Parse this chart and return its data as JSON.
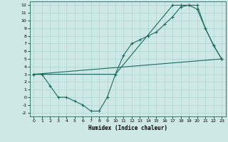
{
  "xlabel": "Humidex (Indice chaleur)",
  "bg_color": "#cde8e5",
  "grid_color": "#a8d4d0",
  "line_color": "#1a6b5e",
  "xlim": [
    -0.5,
    23.5
  ],
  "ylim": [
    -2.5,
    12.5
  ],
  "xticks": [
    0,
    1,
    2,
    3,
    4,
    5,
    6,
    7,
    8,
    9,
    10,
    11,
    12,
    13,
    14,
    15,
    16,
    17,
    18,
    19,
    20,
    21,
    22,
    23
  ],
  "yticks": [
    -2,
    -1,
    0,
    1,
    2,
    3,
    4,
    5,
    6,
    7,
    8,
    9,
    10,
    11,
    12
  ],
  "line1_x": [
    0,
    1,
    2,
    3,
    4,
    5,
    6,
    7,
    8,
    9,
    10,
    11,
    12,
    13,
    14,
    15,
    16,
    17,
    18,
    19,
    20,
    21,
    22,
    23
  ],
  "line1_y": [
    3,
    3,
    1.5,
    0,
    0,
    -0.5,
    -1.0,
    -1.8,
    -1.8,
    0,
    3,
    5.5,
    7.0,
    7.5,
    8.0,
    8.5,
    9.5,
    10.5,
    11.8,
    12.0,
    12.0,
    9.0,
    6.8,
    5.0
  ],
  "line2_x": [
    0,
    23
  ],
  "line2_y": [
    3,
    5
  ],
  "line3_x": [
    0,
    10,
    17,
    18,
    19,
    20,
    21,
    22,
    23
  ],
  "line3_y": [
    3,
    3,
    12,
    12,
    12,
    11.5,
    9.0,
    6.8,
    5.0
  ]
}
